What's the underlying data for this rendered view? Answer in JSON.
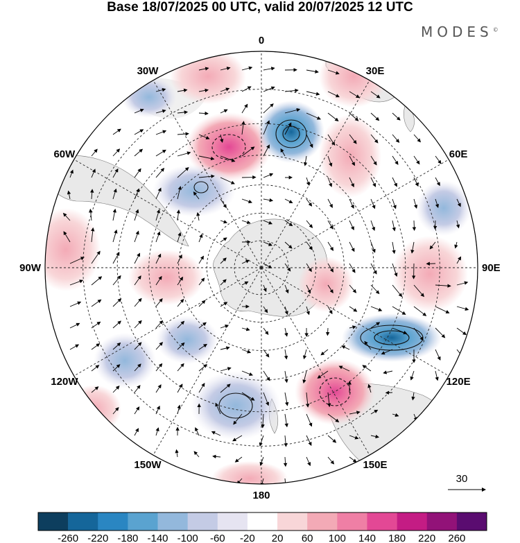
{
  "title": "Base 18/07/2025 00 UTC, valid 20/07/2025 12 UTC",
  "brand": "MODES",
  "brand_mark": "©",
  "map": {
    "projection": "south-polar-stereographic",
    "longitude_labels": [
      {
        "text": "0",
        "lon": 0
      },
      {
        "text": "30E",
        "lon": 30
      },
      {
        "text": "60E",
        "lon": 60
      },
      {
        "text": "90E",
        "lon": 90
      },
      {
        "text": "120E",
        "lon": 120
      },
      {
        "text": "150E",
        "lon": 150
      },
      {
        "text": "180",
        "lon": 180
      },
      {
        "text": "150W",
        "lon": -150
      },
      {
        "text": "120W",
        "lon": -120
      },
      {
        "text": "90W",
        "lon": -90
      },
      {
        "text": "60W",
        "lon": -60
      },
      {
        "text": "30W",
        "lon": -30
      }
    ],
    "latitude_circles": [
      -80,
      -70,
      -60,
      -50,
      -40,
      -30,
      -20
    ]
  },
  "vector_legend": {
    "label": "30"
  },
  "colorbar": {
    "ticks": [
      "-260",
      "-220",
      "-180",
      "-140",
      "-100",
      "-60",
      "-20",
      "20",
      "60",
      "100",
      "140",
      "180",
      "220",
      "260"
    ],
    "colors": [
      "#0d3e5e",
      "#15669a",
      "#2a86c2",
      "#5aa3d0",
      "#93b8dc",
      "#c4cbe5",
      "#e6e4f1",
      "#ffffff",
      "#f8d6d8",
      "#f3aab6",
      "#ef7fa5",
      "#e34895",
      "#c41c84",
      "#921278",
      "#5a0c70"
    ]
  }
}
